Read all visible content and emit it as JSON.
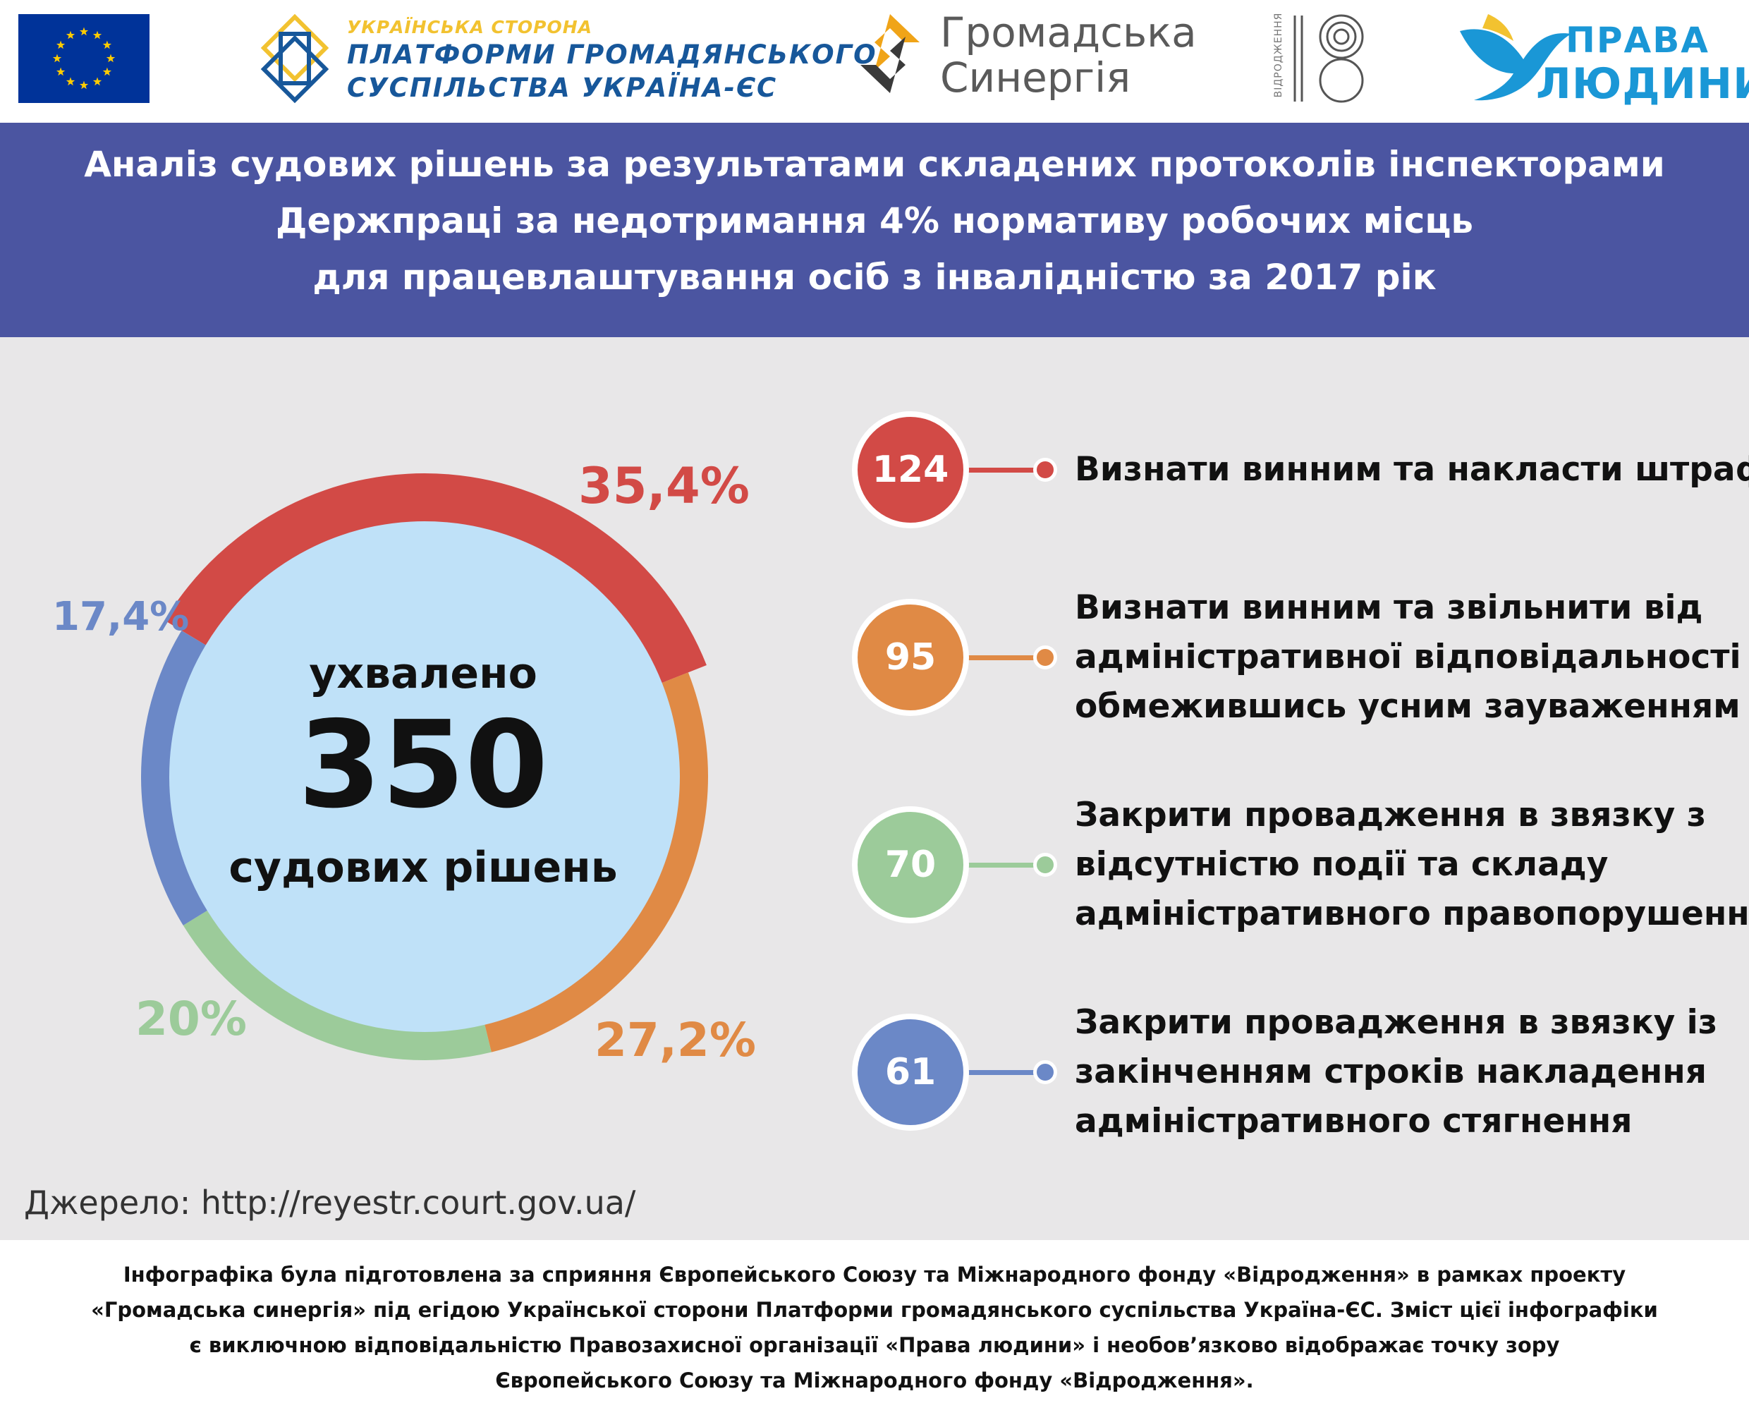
{
  "header": {
    "platform_top": "УКРАЇНСЬКА СТОРОНА",
    "platform_line1": "ПЛАТФОРМИ ГРОМАДЯНСЬКОГО",
    "platform_line2": "СУСПІЛЬСТВА УКРАЇНА-ЄС",
    "synergy_line1": "Громадська",
    "synergy_line2": "Синергія",
    "vidrodzhennia": "ВІДРОДЖЕННЯ",
    "prava_line1": "ПРАВА",
    "prava_line2": "ЛЮДИНИ"
  },
  "banner": {
    "line1": "Аналіз судових рішень за результатами складених протоколів інспекторами",
    "line2": "Держпраці за недотримання 4% нормативу робочих місць",
    "line3": "для працевлаштування осіб з інвалідністю за 2017 рік"
  },
  "center": {
    "top": "ухвалено",
    "number": "350",
    "bottom": "судових рішень"
  },
  "chart_data": {
    "type": "pie",
    "total": 350,
    "series": [
      {
        "label": "35,4%",
        "value": 35.4,
        "count": "124",
        "color": "#d24a46",
        "text": [
          "Визнати винним та накласти штраф"
        ]
      },
      {
        "label": "27,2%",
        "value": 27.2,
        "count": "95",
        "color": "#e08a45",
        "text": [
          "Визнати винним та звільнити від",
          "адміністративної відповідальності",
          "обмежившись усним зауваженням"
        ]
      },
      {
        "label": "20%",
        "value": 20,
        "count": "70",
        "color": "#9ccb9a",
        "text": [
          "Закрити провадження в звязку з",
          "відсутністю події та складу",
          "адміністративного правопорушення"
        ]
      },
      {
        "label": "17,4%",
        "value": 17.4,
        "count": "61",
        "color": "#6b88c7",
        "text": [
          "Закрити провадження  в звязку із",
          "закінченням строків накладення",
          "адміністративного стягнення"
        ]
      }
    ]
  },
  "source": "Джерело: http://reyestr.court.gov.ua/",
  "footer": {
    "line1": "Інфографіка була підготовлена за сприяння Європейського Союзу та Міжнародного фонду «Відродження» в рамках проекту",
    "line2": "«Громадська синергія» під егідою Української сторони Платформи громадянського суспільства Україна-ЄС. Зміст цієї інфографіки",
    "line3": "є виключною відповідальністю Правозахисної організації «Права людини» і необов’язково відображає точку зору",
    "line4": "Європейського Союзу та Міжнародного фонду «Відродження»."
  }
}
